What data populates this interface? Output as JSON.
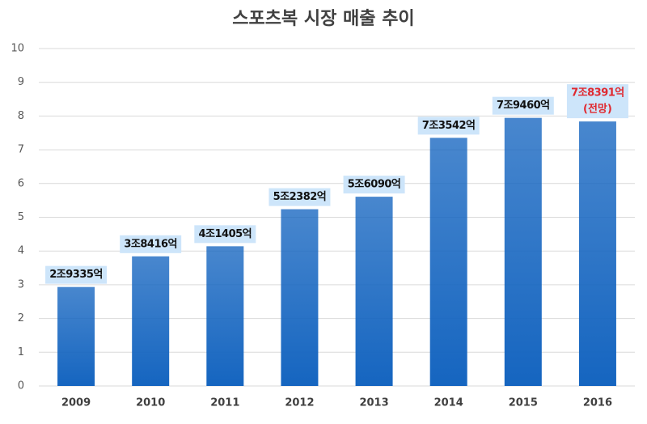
{
  "chart_data": {
    "type": "bar",
    "title": "스포츠복 시장 매출 추이",
    "categories": [
      "2009",
      "2010",
      "2011",
      "2012",
      "2013",
      "2014",
      "2015",
      "2016"
    ],
    "values": [
      2.9335,
      3.8416,
      4.1405,
      5.2382,
      5.609,
      7.3542,
      7.946,
      7.8391
    ],
    "value_labels": [
      "2조9335억",
      "3조8416억",
      "4조1405억",
      "5조2382억",
      "5조6090억",
      "7조3542억",
      "7조9460억",
      "7조8391억"
    ],
    "value_label_colors": [
      "#111111",
      "#111111",
      "#111111",
      "#111111",
      "#111111",
      "#111111",
      "#111111",
      "#e0282e"
    ],
    "annotation": "(전망)",
    "color": "#1565c0",
    "ylim": [
      0,
      10
    ],
    "yticks": [
      0,
      1,
      2,
      3,
      4,
      5,
      6,
      7,
      8,
      9,
      10
    ],
    "grid": true
  }
}
